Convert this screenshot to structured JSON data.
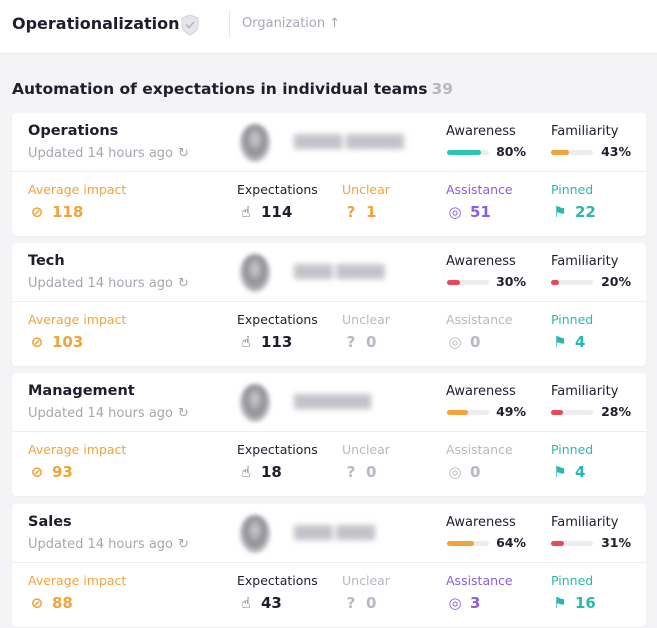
{
  "header": {
    "title": "Operationalization",
    "organization_label": "Organization"
  },
  "section": {
    "title": "Automation of expectations in individual teams",
    "count": "39"
  },
  "labels": {
    "awareness": "Awareness",
    "familiarity": "Familiarity",
    "average_impact": "Average impact",
    "expectations": "Expectations",
    "unclear": "Unclear",
    "assistance": "Assistance",
    "pinned": "Pinned"
  },
  "colors": {
    "accent_orange": "#f2a33a",
    "teal": "#2ab8ad",
    "purple": "#8a5ee0",
    "red": "#e8485a",
    "inactive_gray": "#b8b8c0"
  },
  "teams": [
    {
      "name": "Operations",
      "updated": "Updated 14 hours ago",
      "awareness": "80%",
      "awareness_value": 80,
      "awareness_color": "#2ec4b6",
      "familiarity": "43%",
      "familiarity_value": 43,
      "familiarity_color": "#f2a33a",
      "average_impact": "118",
      "expectations": "114",
      "unclear": "1",
      "unclear_active": true,
      "assistance": "51",
      "assistance_active": true,
      "pinned": "22"
    },
    {
      "name": "Tech",
      "updated": "Updated 14 hours ago",
      "awareness": "30%",
      "awareness_value": 30,
      "awareness_color": "#e8485a",
      "familiarity": "20%",
      "familiarity_value": 20,
      "familiarity_color": "#e8485a",
      "average_impact": "103",
      "expectations": "113",
      "unclear": "0",
      "unclear_active": false,
      "assistance": "0",
      "assistance_active": false,
      "pinned": "4"
    },
    {
      "name": "Management",
      "updated": "Updated 14 hours ago",
      "awareness": "49%",
      "awareness_value": 49,
      "awareness_color": "#f2a33a",
      "familiarity": "28%",
      "familiarity_value": 28,
      "familiarity_color": "#e8485a",
      "average_impact": "93",
      "expectations": "18",
      "unclear": "0",
      "unclear_active": false,
      "assistance": "0",
      "assistance_active": false,
      "pinned": "4"
    },
    {
      "name": "Sales",
      "updated": "Updated 14 hours ago",
      "awareness": "64%",
      "awareness_value": 64,
      "awareness_color": "#f2a33a",
      "familiarity": "31%",
      "familiarity_value": 31,
      "familiarity_color": "#e8485a",
      "average_impact": "88",
      "expectations": "43",
      "unclear": "0",
      "unclear_active": false,
      "assistance": "3",
      "assistance_active": true,
      "pinned": "16"
    }
  ]
}
